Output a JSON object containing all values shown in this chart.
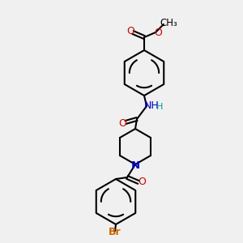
{
  "background_color": "#f0f0f0",
  "figsize": [
    3.0,
    3.0
  ],
  "dpi": 100,
  "title": "",
  "atom_colors": {
    "C": "#000000",
    "N": "#0000cc",
    "O": "#cc0000",
    "Br": "#cc6600",
    "H": "#009999"
  }
}
